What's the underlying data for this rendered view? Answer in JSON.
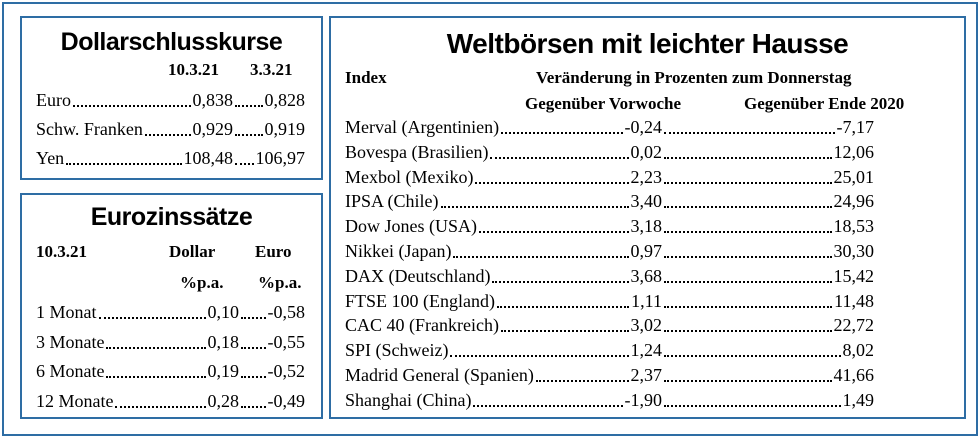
{
  "dollar_box": {
    "title": "Dollarschlusskurse",
    "col_headers": [
      "10.3.21",
      "3.3.21"
    ],
    "rows": [
      {
        "label": "Euro",
        "v1": "0,838",
        "v2": "0,828"
      },
      {
        "label": "Schw. Franken",
        "v1": "0,929",
        "v2": "0,919"
      },
      {
        "label": "Yen",
        "v1": "108,48",
        "v2": "106,97"
      }
    ]
  },
  "zins_box": {
    "title": "Eurozinssätze",
    "date": "10.3.21",
    "col_headers": [
      "Dollar",
      "Euro"
    ],
    "units": [
      "%p.a.",
      "%p.a."
    ],
    "rows": [
      {
        "label": "1 Monat",
        "v1": "0,10",
        "v2": "-0,58"
      },
      {
        "label": "3 Monate",
        "v1": "0,18",
        "v2": "-0,55"
      },
      {
        "label": "6 Monate",
        "v1": "0,19",
        "v2": "-0,52"
      },
      {
        "label": "12 Monate",
        "v1": "0,28",
        "v2": "-0,49"
      }
    ]
  },
  "welt_box": {
    "title": "Weltbörsen mit leichter Hausse",
    "index_header": "Index",
    "change_header": "Veränderung in Prozenten zum Donnerstag",
    "col_headers": [
      "Gegenüber Vorwoche",
      "Gegenüber Ende 2020"
    ],
    "rows": [
      {
        "label": "Merval (Argentinien)",
        "v1": "-0,24",
        "v2": "-7,17"
      },
      {
        "label": "Bovespa (Brasilien)",
        "v1": "0,02",
        "v2": "12,06"
      },
      {
        "label": "Mexbol (Mexiko)",
        "v1": "2,23",
        "v2": "25,01"
      },
      {
        "label": "IPSA (Chile)",
        "v1": "3,40",
        "v2": "24,96"
      },
      {
        "label": "Dow Jones (USA)",
        "v1": "3,18",
        "v2": "18,53"
      },
      {
        "label": "Nikkei (Japan)",
        "v1": "0,97",
        "v2": "30,30"
      },
      {
        "label": "DAX (Deutschland)",
        "v1": "3,68",
        "v2": "15,42"
      },
      {
        "label": "FTSE 100 (England)",
        "v1": "1,11",
        "v2": "11,48"
      },
      {
        "label": "CAC 40 (Frankreich)",
        "v1": "3,02",
        "v2": "22,72"
      },
      {
        "label": "SPI (Schweiz)",
        "v1": "1,24",
        "v2": "8,02"
      },
      {
        "label": "Madrid General (Spanien)",
        "v1": "2,37",
        "v2": "41,66"
      },
      {
        "label": "Shanghai (China)",
        "v1": "-1,90",
        "v2": "1,49"
      }
    ]
  },
  "colors": {
    "border": "#2e6da4",
    "text": "#000000",
    "background": "#ffffff"
  }
}
